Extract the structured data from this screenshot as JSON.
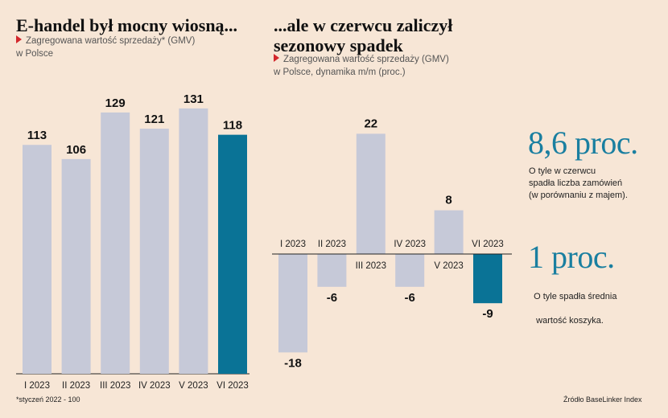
{
  "left_chart_header": {
    "title": "E-handel był mocny wiosną...",
    "subtitle_line1": "Zagregowana wartość sprzedaży* (GMV)",
    "subtitle_line2": "w Polsce"
  },
  "right_chart_header": {
    "title_line1": "...ale w czerwcu zaliczył",
    "title_line2": "sezonowy spadek",
    "subtitle_line1": "Zagregowana wartość sprzedaży (GMV)",
    "subtitle_line2": "w Polsce, dynamika m/m (proc.)"
  },
  "stats": [
    {
      "value": "8,6 proc.",
      "desc": [
        "O tyle w czerwcu",
        "spadła liczba zamówień",
        "(w porównaniu z majem)."
      ]
    },
    {
      "value": "1 proc.",
      "desc": [
        "O tyle spadła średnia",
        " wartość koszyka."
      ]
    }
  ],
  "footnote": "*styczeń 2022 - 100",
  "source": "Źródło BaseLinker Index",
  "colors": {
    "background": "#f7e6d6",
    "bar_default": "#c6c9d8",
    "bar_highlight": "#0a7396",
    "stat_value": "#1a7fa0",
    "marker": "#d3272c"
  },
  "chart_data": [
    {
      "type": "bar",
      "categories": [
        "I 2023",
        "II 2023",
        "III 2023",
        "IV 2023",
        "V 2023",
        "VI 2023"
      ],
      "values": [
        113,
        106,
        129,
        121,
        131,
        118
      ],
      "highlight_index": 5,
      "title": "E-handel był mocny wiosną...",
      "ylim": [
        0,
        145
      ],
      "grid": false
    },
    {
      "type": "bar",
      "categories": [
        "I 2023",
        "II 2023",
        "III 2023",
        "IV 2023",
        "V 2023",
        "VI 2023"
      ],
      "values": [
        -18,
        -6,
        22,
        -6,
        8,
        -9
      ],
      "highlight_index": 5,
      "title": "...ale w czerwcu zaliczył sezonowy spadek",
      "ylim": [
        -18,
        22
      ],
      "grid": false
    }
  ]
}
